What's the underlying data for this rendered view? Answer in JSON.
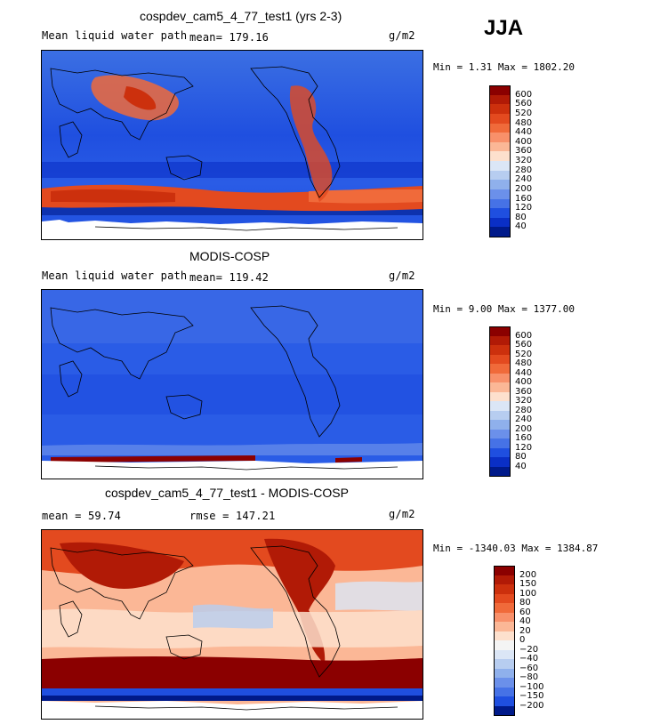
{
  "season": "JJA",
  "panels": [
    {
      "id": "model",
      "title": "cospdev_cam5_4_77_test1 (yrs 2-3)",
      "left_label": "Mean liquid water path",
      "stat_label": "mean= 179.16",
      "units": "g/m2",
      "minmax": "Min =   1.31 Max = 1802.20",
      "colorbar_levels": [
        "600",
        "560",
        "520",
        "480",
        "440",
        "400",
        "360",
        "320",
        "280",
        "240",
        "200",
        "160",
        "120",
        "80",
        "40"
      ],
      "colorbar_colors": [
        "#8b0000",
        "#b11a06",
        "#cc300d",
        "#e34a1f",
        "#f06a3a",
        "#f8906a",
        "#fbb796",
        "#fde0cd",
        "#dbe6f6",
        "#b7cdf0",
        "#8fb0ec",
        "#6b90ea",
        "#4672e6",
        "#1f4fe0",
        "#0a2fc6",
        "#001a8a"
      ]
    },
    {
      "id": "obs",
      "title": "MODIS-COSP",
      "left_label": "Mean liquid water path",
      "stat_label": "mean= 119.42",
      "units": "g/m2",
      "minmax": "Min =   9.00 Max = 1377.00",
      "colorbar_levels": [
        "600",
        "560",
        "520",
        "480",
        "440",
        "400",
        "360",
        "320",
        "280",
        "240",
        "200",
        "160",
        "120",
        "80",
        "40"
      ],
      "colorbar_colors": [
        "#8b0000",
        "#b11a06",
        "#cc300d",
        "#e34a1f",
        "#f06a3a",
        "#f8906a",
        "#fbb796",
        "#fde0cd",
        "#dbe6f6",
        "#b7cdf0",
        "#8fb0ec",
        "#6b90ea",
        "#4672e6",
        "#1f4fe0",
        "#0a2fc6",
        "#001a8a"
      ]
    },
    {
      "id": "diff",
      "title": "cospdev_cam5_4_77_test1 - MODIS-COSP",
      "left_label": "mean =   59.74",
      "stat_label": "rmse = 147.21",
      "units": "g/m2",
      "minmax": "Min = -1340.03 Max = 1384.87",
      "colorbar_levels": [
        "200",
        "150",
        "100",
        "80",
        "60",
        "40",
        "20",
        "0",
        "−20",
        "−40",
        "−60",
        "−80",
        "−100",
        "−150",
        "−200"
      ],
      "colorbar_colors": [
        "#8b0000",
        "#b11a06",
        "#cc300d",
        "#e34a1f",
        "#f06a3a",
        "#f8906a",
        "#fbb796",
        "#fde0cd",
        "#f4f4f4",
        "#dbe6f6",
        "#b7cdf0",
        "#8fb0ec",
        "#6b90ea",
        "#4672e6",
        "#1f4fe0",
        "#001a8a"
      ]
    }
  ]
}
